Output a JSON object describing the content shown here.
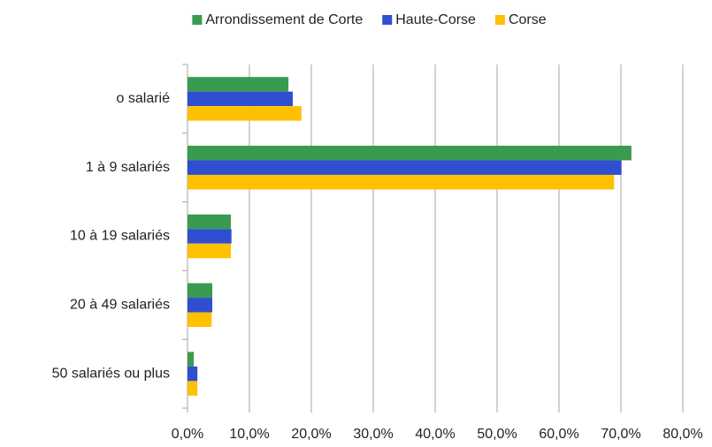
{
  "chart_data": {
    "type": "hbar",
    "categories": [
      "o salarié",
      "1 à 9 salariés",
      "10 à 19 salariés",
      "20 à 49 salariés",
      "50 salariés ou plus"
    ],
    "series": [
      {
        "name": "Arrondissement de Corte",
        "color": "#3a9a4f",
        "values": [
          16.3,
          71.7,
          7.0,
          4.0,
          1.0
        ]
      },
      {
        "name": "Haute-Corse",
        "color": "#2f4fd0",
        "values": [
          17.0,
          70.1,
          7.1,
          4.0,
          1.6
        ]
      },
      {
        "name": "Corse",
        "color": "#ffc000",
        "values": [
          18.4,
          68.9,
          7.0,
          3.9,
          1.6
        ]
      }
    ],
    "xlim": [
      0,
      80
    ],
    "xticks": [
      {
        "value": 0,
        "label": "0,0%"
      },
      {
        "value": 10,
        "label": "10,0%"
      },
      {
        "value": 20,
        "label": "20,0%"
      },
      {
        "value": 30,
        "label": "30,0%"
      },
      {
        "value": 40,
        "label": "40,0%"
      },
      {
        "value": 50,
        "label": "50,0%"
      },
      {
        "value": 60,
        "label": "60,0%"
      },
      {
        "value": 70,
        "label": "70,0%"
      },
      {
        "value": 80,
        "label": "80,0%"
      }
    ],
    "grid": true,
    "legend": "top"
  }
}
